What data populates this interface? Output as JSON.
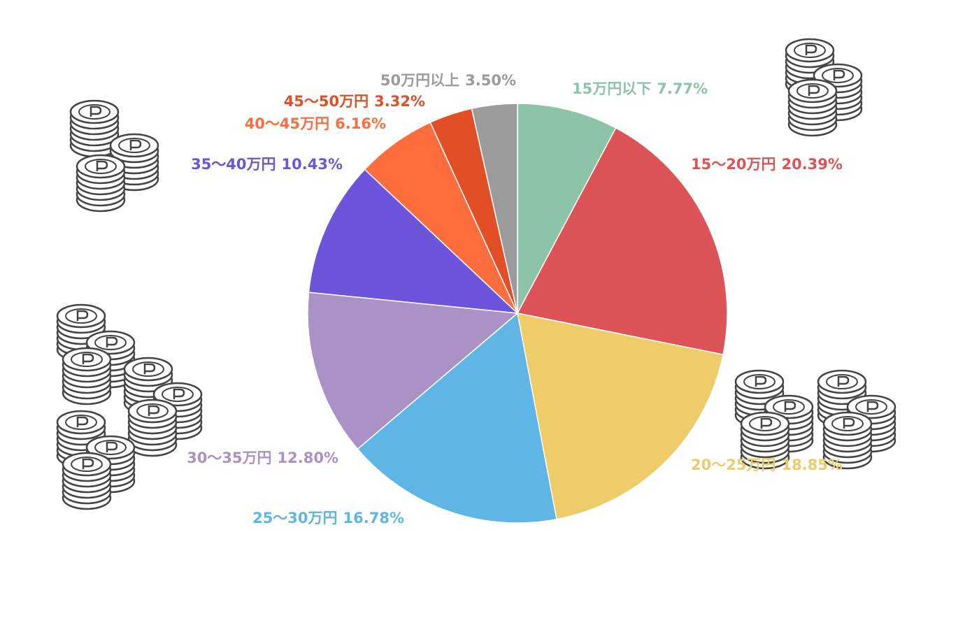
{
  "chart_data": {
    "type": "pie",
    "categories": [
      "15万円以下",
      "15～20万円",
      "20～25万円",
      "25～30万円",
      "30～35万円",
      "35～40万円",
      "40～45万円",
      "45～50万円",
      "50万円以上"
    ],
    "values": [
      7.77,
      20.39,
      18.85,
      16.78,
      12.8,
      10.43,
      6.16,
      3.32,
      3.5
    ],
    "value_labels": [
      "7.77%",
      "20.39%",
      "18.85%",
      "16.78%",
      "12.80%",
      "10.43%",
      "6.16%",
      "3.32%",
      "3.50%"
    ],
    "colors": [
      "#8dc3a7",
      "#dc5458",
      "#eecc6a",
      "#5fb6e4",
      "#aa92c7",
      "#6c55db",
      "#fd6d3e",
      "#e24f27",
      "#9b9b9b"
    ]
  }
}
